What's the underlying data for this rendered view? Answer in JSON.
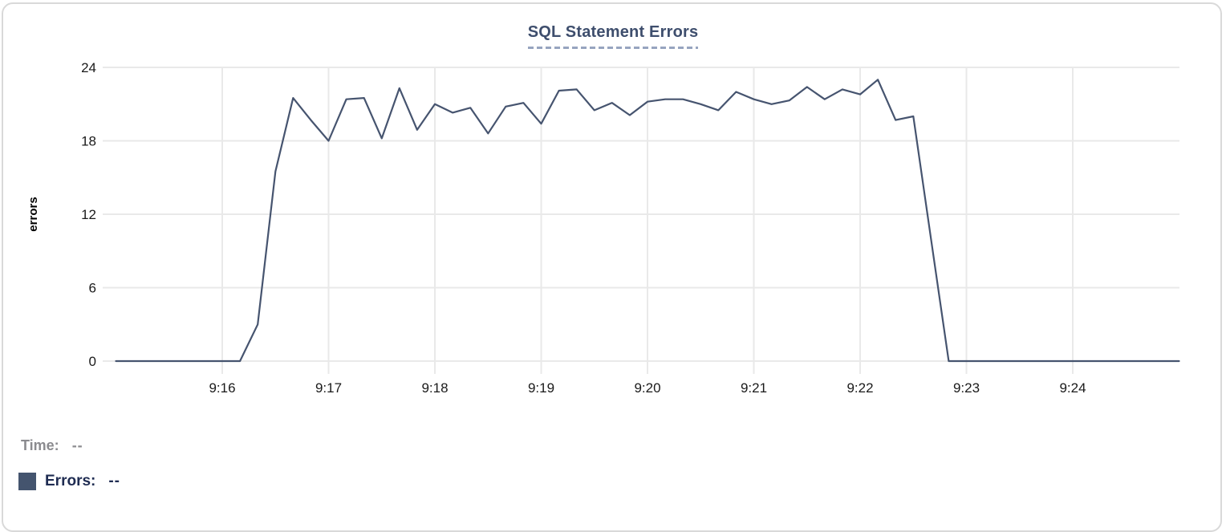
{
  "title": "SQL Statement Errors",
  "chart_data": {
    "type": "line",
    "title": "SQL Statement Errors",
    "xlabel": "",
    "ylabel": "errors",
    "ylim": [
      0,
      24
    ],
    "y_ticks": [
      0,
      6,
      12,
      18,
      24
    ],
    "x_ticks": [
      "9:16",
      "9:17",
      "9:18",
      "9:19",
      "9:20",
      "9:21",
      "9:22",
      "9:23",
      "9:24"
    ],
    "x_range": [
      "9:15:00",
      "9:25:00"
    ],
    "sample_interval_seconds": 10,
    "grid": true,
    "legend_position": "bottom-left",
    "series": [
      {
        "name": "Errors",
        "color": "#46546f",
        "x": [
          "9:15:00",
          "9:15:10",
          "9:15:20",
          "9:15:30",
          "9:15:40",
          "9:15:50",
          "9:16:00",
          "9:16:10",
          "9:16:20",
          "9:16:30",
          "9:16:40",
          "9:16:50",
          "9:17:00",
          "9:17:10",
          "9:17:20",
          "9:17:30",
          "9:17:40",
          "9:17:50",
          "9:18:00",
          "9:18:10",
          "9:18:20",
          "9:18:30",
          "9:18:40",
          "9:18:50",
          "9:19:00",
          "9:19:10",
          "9:19:20",
          "9:19:30",
          "9:19:40",
          "9:19:50",
          "9:20:00",
          "9:20:10",
          "9:20:20",
          "9:20:30",
          "9:20:40",
          "9:20:50",
          "9:21:00",
          "9:21:10",
          "9:21:20",
          "9:21:30",
          "9:21:40",
          "9:21:50",
          "9:22:00",
          "9:22:10",
          "9:22:20",
          "9:22:30",
          "9:22:40",
          "9:22:50",
          "9:23:00",
          "9:23:10",
          "9:23:20",
          "9:23:30",
          "9:23:40",
          "9:23:50",
          "9:24:00",
          "9:24:10",
          "9:24:20",
          "9:24:30",
          "9:24:40",
          "9:24:50",
          "9:25:00"
        ],
        "values": [
          0,
          0,
          0,
          0,
          0,
          0,
          0,
          0,
          3,
          15.5,
          21.5,
          19.7,
          18,
          21.4,
          21.5,
          18.2,
          22.3,
          18.9,
          21,
          20.3,
          20.7,
          18.6,
          20.8,
          21.1,
          19.4,
          22.1,
          22.2,
          20.5,
          21.1,
          20.1,
          21.2,
          21.4,
          21.4,
          21,
          20.5,
          22,
          21.4,
          21,
          21.3,
          22.4,
          21.4,
          22.2,
          21.8,
          23,
          19.7,
          20,
          10,
          0,
          0,
          0,
          0,
          0,
          0,
          0,
          0,
          0,
          0,
          0,
          0,
          0,
          0
        ]
      }
    ]
  },
  "colors": {
    "line": "#46546f",
    "swatch": "#44546e",
    "title": "#3e4e6d",
    "grid": "#e9e9e9"
  },
  "legend": {
    "time_label": "Time:",
    "time_value": "--",
    "errors_label": "Errors:",
    "errors_value": "--",
    "swatch_color": "#44546e"
  }
}
